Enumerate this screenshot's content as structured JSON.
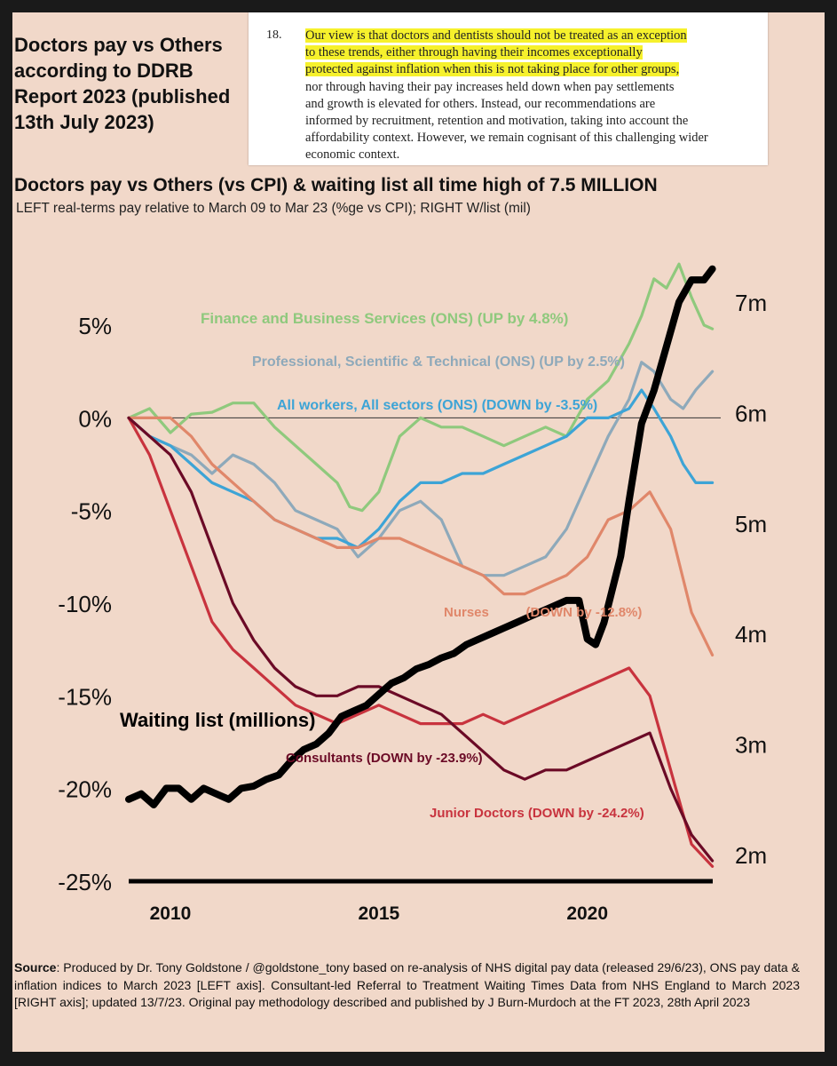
{
  "header": {
    "title_lines": [
      "Doctors pay vs Others",
      "according to DDRB",
      "Report 2023 (published",
      "13th July 2023)"
    ]
  },
  "quote": {
    "number": "18.",
    "highlighted_lines": [
      "Our view is that doctors and dentists should not be treated as an exception",
      "to these trends, either through having their incomes exceptionally",
      "protected against inflation when this is not taking place for other groups,"
    ],
    "plain_lines": [
      "nor through having their pay increases held down when pay settlements",
      "and growth is elevated for others. Instead, our recommendations are",
      "informed by recruitment, retention and motivation, taking into account the",
      "affordability context. However, we remain cognisant of this challenging wider",
      "economic context."
    ]
  },
  "chart_data": {
    "type": "line",
    "title": "Doctors pay vs Others (vs CPI) & waiting list all time high of 7.5 MILLION",
    "subtitle": "LEFT real-terms pay relative to March 09 to Mar 23 (%ge vs CPI); RIGHT W/list (mil)",
    "x_range": [
      2009,
      2023.2
    ],
    "x_ticks": [
      2010,
      2015,
      2020
    ],
    "x_tick_labels": [
      "2010",
      "2015",
      "2020"
    ],
    "y_left_range": [
      -25,
      8.5
    ],
    "y_left_ticks": [
      5,
      0,
      -5,
      -10,
      -15,
      -20,
      -25
    ],
    "y_left_tick_labels": [
      "5%",
      "0%",
      "-5%",
      "-10%",
      "-15%",
      "-20%",
      "-25%"
    ],
    "y_right_range": [
      1.75,
      7.4
    ],
    "y_right_ticks": [
      7,
      6,
      5,
      4,
      3,
      2
    ],
    "y_right_tick_labels": [
      "7m",
      "6m",
      "5m",
      "4m",
      "3m",
      "2m"
    ],
    "series": [
      {
        "name": "Finance and Business Services",
        "axis": "left",
        "color": "#8fc97d",
        "label": "Finance and Business Services (ONS) (UP by 4.8%)",
        "x": [
          2009.0,
          2009.5,
          2010.0,
          2010.5,
          2011.0,
          2011.5,
          2012.0,
          2012.5,
          2013.0,
          2013.5,
          2014.0,
          2014.3,
          2014.6,
          2015.0,
          2015.5,
          2016.0,
          2016.5,
          2017.0,
          2017.5,
          2018.0,
          2018.5,
          2019.0,
          2019.5,
          2020.0,
          2020.5,
          2021.0,
          2021.3,
          2021.6,
          2021.9,
          2022.2,
          2022.5,
          2022.8,
          2023.0
        ],
        "y": [
          0,
          0.5,
          -0.8,
          0.2,
          0.3,
          0.8,
          0.8,
          -0.5,
          -1.5,
          -2.5,
          -3.5,
          -4.8,
          -5.0,
          -4.0,
          -1.0,
          0,
          -0.5,
          -0.5,
          -1.0,
          -1.5,
          -1.0,
          -0.5,
          -1.0,
          1.0,
          2.0,
          4.0,
          5.5,
          7.5,
          7.0,
          8.3,
          6.5,
          5.0,
          4.8
        ]
      },
      {
        "name": "Professional, Scientific & Technical",
        "axis": "left",
        "color": "#8ea9ba",
        "label": "Professional, Scientific & Technical (ONS) (UP by 2.5%)",
        "x": [
          2009.0,
          2009.5,
          2010.0,
          2010.5,
          2011.0,
          2011.5,
          2012.0,
          2012.5,
          2013.0,
          2013.5,
          2014.0,
          2014.5,
          2015.0,
          2015.5,
          2016.0,
          2016.5,
          2017.0,
          2017.5,
          2018.0,
          2018.5,
          2019.0,
          2019.5,
          2020.0,
          2020.5,
          2021.0,
          2021.3,
          2021.6,
          2022.0,
          2022.3,
          2022.6,
          2023.0
        ],
        "y": [
          0,
          -1.0,
          -1.5,
          -2.0,
          -3.0,
          -2.0,
          -2.5,
          -3.5,
          -5.0,
          -5.5,
          -6.0,
          -7.5,
          -6.5,
          -5.0,
          -4.5,
          -5.5,
          -8.0,
          -8.5,
          -8.5,
          -8.0,
          -7.5,
          -6.0,
          -3.5,
          -1.0,
          1.0,
          3.0,
          2.5,
          1.0,
          0.5,
          1.5,
          2.5
        ]
      },
      {
        "name": "All workers, All sectors",
        "axis": "left",
        "color": "#3da4d6",
        "label": "All workers, All sectors (ONS) (DOWN by -3.5%)",
        "x": [
          2009.0,
          2009.5,
          2010.0,
          2010.5,
          2011.0,
          2011.5,
          2012.0,
          2012.5,
          2013.0,
          2013.5,
          2014.0,
          2014.5,
          2015.0,
          2015.5,
          2016.0,
          2016.5,
          2017.0,
          2017.5,
          2018.0,
          2018.5,
          2019.0,
          2019.5,
          2020.0,
          2020.5,
          2021.0,
          2021.3,
          2021.6,
          2022.0,
          2022.3,
          2022.6,
          2023.0
        ],
        "y": [
          0,
          -1.0,
          -1.5,
          -2.5,
          -3.5,
          -4.0,
          -4.5,
          -5.5,
          -6.0,
          -6.5,
          -6.5,
          -7.0,
          -6.0,
          -4.5,
          -3.5,
          -3.5,
          -3.0,
          -3.0,
          -2.5,
          -2.0,
          -1.5,
          -1.0,
          0,
          0,
          0.5,
          1.5,
          0.5,
          -1.0,
          -2.5,
          -3.5,
          -3.5
        ]
      },
      {
        "name": "Nurses",
        "axis": "left",
        "color": "#e0876a",
        "label": "Nurses          (DOWN by -12.8%)",
        "x": [
          2009.0,
          2009.5,
          2010.0,
          2010.5,
          2011.0,
          2011.5,
          2012.0,
          2012.5,
          2013.0,
          2013.5,
          2014.0,
          2014.5,
          2015.0,
          2015.5,
          2016.0,
          2016.5,
          2017.0,
          2017.5,
          2018.0,
          2018.5,
          2019.0,
          2019.5,
          2020.0,
          2020.5,
          2021.0,
          2021.5,
          2022.0,
          2022.5,
          2023.0
        ],
        "y": [
          0,
          0,
          0,
          -1.0,
          -2.5,
          -3.5,
          -4.5,
          -5.5,
          -6.0,
          -6.5,
          -7.0,
          -7.0,
          -6.5,
          -6.5,
          -7.0,
          -7.5,
          -8.0,
          -8.5,
          -9.5,
          -9.5,
          -9.0,
          -8.5,
          -7.5,
          -5.5,
          -5.0,
          -4.0,
          -6.0,
          -10.5,
          -12.8
        ]
      },
      {
        "name": "Consultants",
        "axis": "left",
        "color": "#6b0a26",
        "label": "Consultants (DOWN by -23.9%)",
        "x": [
          2009.0,
          2009.5,
          2010.0,
          2010.5,
          2011.0,
          2011.5,
          2012.0,
          2012.5,
          2013.0,
          2013.5,
          2014.0,
          2014.5,
          2015.0,
          2015.5,
          2016.0,
          2016.5,
          2017.0,
          2017.5,
          2018.0,
          2018.5,
          2019.0,
          2019.5,
          2020.0,
          2020.5,
          2021.0,
          2021.5,
          2022.0,
          2022.5,
          2023.0
        ],
        "y": [
          0,
          -1.0,
          -2.0,
          -4.0,
          -7.0,
          -10.0,
          -12.0,
          -13.5,
          -14.5,
          -15.0,
          -15.0,
          -14.5,
          -14.5,
          -15.0,
          -15.5,
          -16.0,
          -17.0,
          -18.0,
          -19.0,
          -19.5,
          -19.0,
          -19.0,
          -18.5,
          -18.0,
          -17.5,
          -17.0,
          -20.0,
          -22.5,
          -23.9
        ]
      },
      {
        "name": "Junior Doctors",
        "axis": "left",
        "color": "#c8333e",
        "label": "Junior Doctors (DOWN by -24.2%)",
        "x": [
          2009.0,
          2009.5,
          2010.0,
          2010.5,
          2011.0,
          2011.5,
          2012.0,
          2012.5,
          2013.0,
          2013.5,
          2014.0,
          2014.5,
          2015.0,
          2015.5,
          2016.0,
          2016.5,
          2017.0,
          2017.5,
          2018.0,
          2018.5,
          2019.0,
          2019.5,
          2020.0,
          2020.5,
          2021.0,
          2021.5,
          2022.0,
          2022.5,
          2023.0
        ],
        "y": [
          0,
          -2.0,
          -5.0,
          -8.0,
          -11.0,
          -12.5,
          -13.5,
          -14.5,
          -15.5,
          -16.0,
          -16.5,
          -16.0,
          -15.5,
          -16.0,
          -16.5,
          -16.5,
          -16.5,
          -16.0,
          -16.5,
          -16.0,
          -15.5,
          -15.0,
          -14.5,
          -14.0,
          -13.5,
          -15.0,
          -19.0,
          -23.0,
          -24.2
        ]
      },
      {
        "name": "Waiting list (millions)",
        "axis": "right",
        "color": "#000000",
        "label": "Waiting list (millions)",
        "x": [
          2009.0,
          2009.3,
          2009.6,
          2009.9,
          2010.2,
          2010.5,
          2010.8,
          2011.1,
          2011.4,
          2011.7,
          2012.0,
          2012.3,
          2012.6,
          2012.9,
          2013.2,
          2013.5,
          2013.8,
          2014.1,
          2014.4,
          2014.7,
          2015.0,
          2015.3,
          2015.6,
          2015.9,
          2016.2,
          2016.5,
          2016.8,
          2017.1,
          2017.4,
          2017.7,
          2018.0,
          2018.3,
          2018.6,
          2018.9,
          2019.2,
          2019.5,
          2019.8,
          2020.0,
          2020.2,
          2020.4,
          2020.6,
          2020.8,
          2021.0,
          2021.3,
          2021.6,
          2021.9,
          2022.2,
          2022.5,
          2022.8,
          2023.0
        ],
        "y": [
          2.5,
          2.55,
          2.45,
          2.6,
          2.6,
          2.5,
          2.6,
          2.55,
          2.5,
          2.6,
          2.62,
          2.68,
          2.72,
          2.85,
          2.95,
          3.0,
          3.1,
          3.25,
          3.3,
          3.35,
          3.45,
          3.55,
          3.6,
          3.68,
          3.72,
          3.78,
          3.82,
          3.9,
          3.95,
          4.0,
          4.05,
          4.1,
          4.15,
          4.2,
          4.25,
          4.3,
          4.3,
          3.95,
          3.9,
          4.1,
          4.4,
          4.7,
          5.2,
          5.9,
          6.2,
          6.6,
          7.0,
          7.2,
          7.2,
          7.3
        ]
      }
    ],
    "annotation": "Waiting list (millions)"
  },
  "source": {
    "label": "Source",
    "text": ": Produced by Dr. Tony Goldstone / @goldstone_tony based on re-analysis of NHS digital pay data (released 29/6/23), ONS pay data & inflation indices to March 2023 [LEFT axis]. Consultant-led Referral to Treatment Waiting Times Data from NHS England to March 2023 [RIGHT axis]; updated 13/7/23. Original pay methodology described and published by J Burn-Murdoch at the FT 2023, 28th April 2023"
  }
}
